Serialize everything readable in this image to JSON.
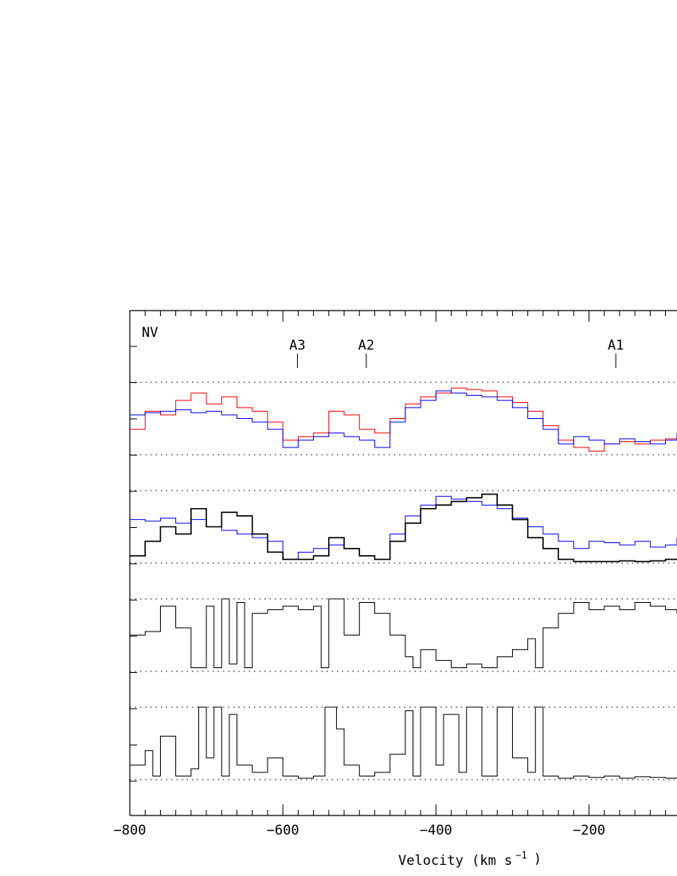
{
  "chart_data": {
    "type": "line",
    "species_label": "NV",
    "xlabel": "Velocity (km s",
    "xlabel_exponent": "−1",
    "xlabel_close": ")",
    "xlim": [
      -800,
      -85
    ],
    "x_ticks": [
      "−800",
      "−600",
      "−400",
      "−200"
    ],
    "x_tick_values": [
      -800,
      -600,
      -400,
      -200
    ],
    "component_markers": [
      {
        "label": "A3",
        "velocity": -581
      },
      {
        "label": "A2",
        "velocity": -491
      },
      {
        "label": "A1",
        "velocity": -165
      }
    ],
    "panels": [
      {
        "name": "",
        "series": [
          {
            "color": "#ff0000",
            "points": [
              [
                -800,
                0.35
              ],
              [
                -780,
                0.6
              ],
              [
                -760,
                0.55
              ],
              [
                -740,
                0.75
              ],
              [
                -720,
                0.85
              ],
              [
                -700,
                0.7
              ],
              [
                -680,
                0.8
              ],
              [
                -660,
                0.65
              ],
              [
                -640,
                0.6
              ],
              [
                -620,
                0.45
              ],
              [
                -600,
                0.2
              ],
              [
                -580,
                0.25
              ],
              [
                -560,
                0.3
              ],
              [
                -540,
                0.6
              ],
              [
                -520,
                0.55
              ],
              [
                -500,
                0.35
              ],
              [
                -480,
                0.3
              ],
              [
                -460,
                0.5
              ],
              [
                -440,
                0.7
              ],
              [
                -420,
                0.8
              ],
              [
                -400,
                0.85
              ],
              [
                -380,
                0.92
              ],
              [
                -360,
                0.9
              ],
              [
                -340,
                0.88
              ],
              [
                -320,
                0.8
              ],
              [
                -300,
                0.72
              ],
              [
                -280,
                0.6
              ],
              [
                -260,
                0.4
              ],
              [
                -240,
                0.2
              ],
              [
                -220,
                0.1
              ],
              [
                -200,
                0.05
              ],
              [
                -180,
                0.15
              ],
              [
                -160,
                0.18
              ],
              [
                -140,
                0.15
              ],
              [
                -120,
                0.2
              ],
              [
                -100,
                0.22
              ],
              [
                -85,
                0.25
              ]
            ]
          },
          {
            "color": "#0000ff",
            "points": [
              [
                -800,
                0.55
              ],
              [
                -780,
                0.58
              ],
              [
                -760,
                0.6
              ],
              [
                -740,
                0.62
              ],
              [
                -720,
                0.58
              ],
              [
                -700,
                0.6
              ],
              [
                -680,
                0.55
              ],
              [
                -660,
                0.5
              ],
              [
                -640,
                0.45
              ],
              [
                -620,
                0.35
              ],
              [
                -600,
                0.1
              ],
              [
                -580,
                0.2
              ],
              [
                -560,
                0.25
              ],
              [
                -540,
                0.3
              ],
              [
                -520,
                0.25
              ],
              [
                -500,
                0.2
              ],
              [
                -480,
                0.1
              ],
              [
                -460,
                0.45
              ],
              [
                -440,
                0.65
              ],
              [
                -420,
                0.75
              ],
              [
                -400,
                0.88
              ],
              [
                -380,
                0.85
              ],
              [
                -360,
                0.82
              ],
              [
                -340,
                0.8
              ],
              [
                -320,
                0.75
              ],
              [
                -300,
                0.65
              ],
              [
                -280,
                0.5
              ],
              [
                -260,
                0.35
              ],
              [
                -240,
                0.15
              ],
              [
                -220,
                0.25
              ],
              [
                -200,
                0.2
              ],
              [
                -180,
                0.15
              ],
              [
                -160,
                0.22
              ],
              [
                -140,
                0.18
              ],
              [
                -120,
                0.15
              ],
              [
                -100,
                0.2
              ],
              [
                -85,
                0.3
              ]
            ]
          }
        ]
      },
      {
        "name": "",
        "series": [
          {
            "color": "#0000ff",
            "points": [
              [
                -800,
                0.6
              ],
              [
                -780,
                0.58
              ],
              [
                -760,
                0.62
              ],
              [
                -740,
                0.55
              ],
              [
                -720,
                0.6
              ],
              [
                -700,
                0.5
              ],
              [
                -680,
                0.45
              ],
              [
                -660,
                0.4
              ],
              [
                -640,
                0.35
              ],
              [
                -620,
                0.3
              ],
              [
                -600,
                0.05
              ],
              [
                -580,
                0.15
              ],
              [
                -560,
                0.2
              ],
              [
                -540,
                0.25
              ],
              [
                -520,
                0.2
              ],
              [
                -500,
                0.1
              ],
              [
                -480,
                0.05
              ],
              [
                -460,
                0.4
              ],
              [
                -440,
                0.65
              ],
              [
                -420,
                0.8
              ],
              [
                -400,
                0.92
              ],
              [
                -380,
                0.88
              ],
              [
                -360,
                0.85
              ],
              [
                -340,
                0.8
              ],
              [
                -320,
                0.75
              ],
              [
                -300,
                0.62
              ],
              [
                -280,
                0.5
              ],
              [
                -260,
                0.4
              ],
              [
                -240,
                0.3
              ],
              [
                -220,
                0.2
              ],
              [
                -200,
                0.3
              ],
              [
                -180,
                0.28
              ],
              [
                -160,
                0.25
              ],
              [
                -140,
                0.3
              ],
              [
                -120,
                0.22
              ],
              [
                -100,
                0.25
              ],
              [
                -85,
                0.35
              ]
            ]
          },
          {
            "color": "#000000",
            "points": [
              [
                -800,
                0.1
              ],
              [
                -780,
                0.3
              ],
              [
                -760,
                0.5
              ],
              [
                -740,
                0.4
              ],
              [
                -720,
                0.75
              ],
              [
                -700,
                0.5
              ],
              [
                -680,
                0.7
              ],
              [
                -660,
                0.65
              ],
              [
                -640,
                0.4
              ],
              [
                -620,
                0.15
              ],
              [
                -600,
                0.05
              ],
              [
                -580,
                0.05
              ],
              [
                -560,
                0.1
              ],
              [
                -540,
                0.35
              ],
              [
                -520,
                0.2
              ],
              [
                -500,
                0.1
              ],
              [
                -480,
                0.05
              ],
              [
                -460,
                0.3
              ],
              [
                -440,
                0.55
              ],
              [
                -420,
                0.75
              ],
              [
                -400,
                0.8
              ],
              [
                -380,
                0.85
              ],
              [
                -360,
                0.9
              ],
              [
                -340,
                0.95
              ],
              [
                -320,
                0.8
              ],
              [
                -300,
                0.6
              ],
              [
                -280,
                0.35
              ],
              [
                -260,
                0.2
              ],
              [
                -240,
                0.05
              ],
              [
                -220,
                0.02
              ],
              [
                -200,
                0.02
              ],
              [
                -180,
                0.02
              ],
              [
                -160,
                0.03
              ],
              [
                -140,
                0.02
              ],
              [
                -120,
                0.03
              ],
              [
                -100,
                0.05
              ],
              [
                -85,
                0.06
              ]
            ]
          }
        ]
      },
      {
        "name": "",
        "series": [
          {
            "color": "#000000",
            "points": [
              [
                -800,
                0.5
              ],
              [
                -780,
                0.55
              ],
              [
                -760,
                0.9
              ],
              [
                -740,
                0.6
              ],
              [
                -720,
                0.05
              ],
              [
                -700,
                0.9
              ],
              [
                -690,
                0.05
              ],
              [
                -680,
                1.0
              ],
              [
                -670,
                0.1
              ],
              [
                -660,
                0.95
              ],
              [
                -650,
                0.05
              ],
              [
                -640,
                0.8
              ],
              [
                -620,
                0.85
              ],
              [
                -600,
                0.9
              ],
              [
                -580,
                0.85
              ],
              [
                -560,
                0.9
              ],
              [
                -550,
                0.05
              ],
              [
                -540,
                1.0
              ],
              [
                -520,
                0.5
              ],
              [
                -500,
                0.95
              ],
              [
                -480,
                0.8
              ],
              [
                -460,
                0.5
              ],
              [
                -440,
                0.2
              ],
              [
                -430,
                0.05
              ],
              [
                -420,
                0.3
              ],
              [
                -400,
                0.15
              ],
              [
                -380,
                0.05
              ],
              [
                -360,
                0.1
              ],
              [
                -340,
                0.05
              ],
              [
                -320,
                0.2
              ],
              [
                -300,
                0.3
              ],
              [
                -280,
                0.45
              ],
              [
                -270,
                0.05
              ],
              [
                -260,
                0.6
              ],
              [
                -240,
                0.8
              ],
              [
                -220,
                0.95
              ],
              [
                -200,
                0.85
              ],
              [
                -180,
                0.9
              ],
              [
                -160,
                0.85
              ],
              [
                -140,
                0.95
              ],
              [
                -120,
                0.9
              ],
              [
                -100,
                0.85
              ],
              [
                -85,
                0.8
              ]
            ]
          }
        ]
      },
      {
        "name": "",
        "series": [
          {
            "color": "#000000",
            "points": [
              [
                -800,
                0.2
              ],
              [
                -780,
                0.4
              ],
              [
                -770,
                0.05
              ],
              [
                -760,
                0.6
              ],
              [
                -740,
                0.05
              ],
              [
                -720,
                0.15
              ],
              [
                -710,
                1.0
              ],
              [
                -700,
                0.3
              ],
              [
                -690,
                1.0
              ],
              [
                -680,
                0.05
              ],
              [
                -670,
                0.9
              ],
              [
                -660,
                0.2
              ],
              [
                -640,
                0.1
              ],
              [
                -620,
                0.3
              ],
              [
                -600,
                0.05
              ],
              [
                -580,
                0.02
              ],
              [
                -560,
                0.05
              ],
              [
                -545,
                1.0
              ],
              [
                -530,
                0.7
              ],
              [
                -520,
                0.2
              ],
              [
                -500,
                0.05
              ],
              [
                -480,
                0.1
              ],
              [
                -460,
                0.35
              ],
              [
                -440,
                0.95
              ],
              [
                -430,
                0.05
              ],
              [
                -420,
                1.0
              ],
              [
                -400,
                0.2
              ],
              [
                -390,
                0.9
              ],
              [
                -370,
                0.1
              ],
              [
                -360,
                1.0
              ],
              [
                -340,
                0.05
              ],
              [
                -320,
                1.0
              ],
              [
                -300,
                0.3
              ],
              [
                -280,
                0.1
              ],
              [
                -270,
                1.0
              ],
              [
                -260,
                0.05
              ],
              [
                -240,
                0.02
              ],
              [
                -220,
                0.05
              ],
              [
                -200,
                0.03
              ],
              [
                -180,
                0.05
              ],
              [
                -160,
                0.02
              ],
              [
                -140,
                0.04
              ],
              [
                -120,
                0.03
              ],
              [
                -100,
                0.02
              ],
              [
                -85,
                0.03
              ]
            ]
          }
        ]
      }
    ]
  }
}
